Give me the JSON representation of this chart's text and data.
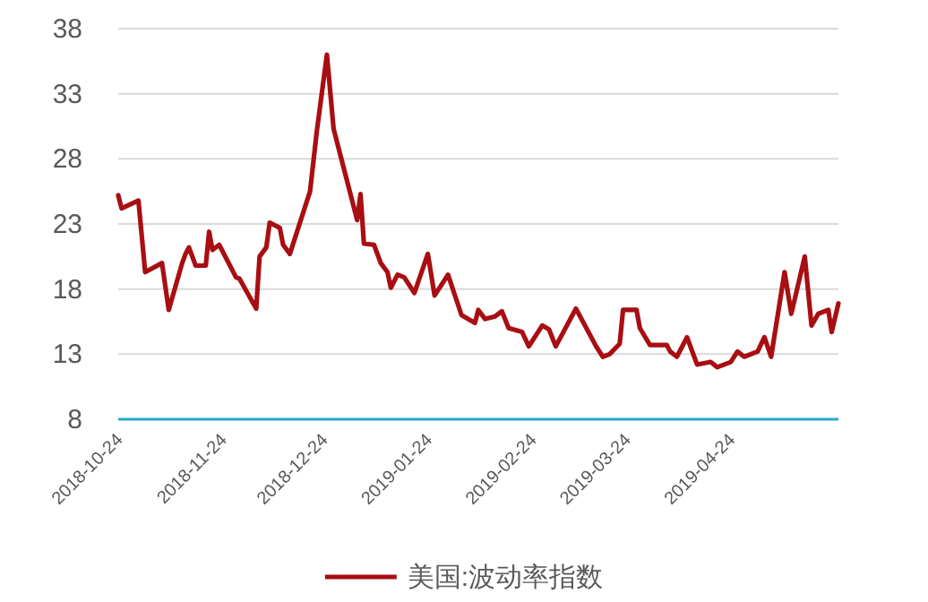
{
  "chart_data": {
    "type": "line",
    "xlim": [
      "2018-10-24",
      "2019-05-26"
    ],
    "xticks": [
      "2018-10-24",
      "2018-11-24",
      "2018-12-24",
      "2019-01-24",
      "2019-02-24",
      "2019-03-24",
      "2019-04-24"
    ],
    "ylim": [
      8,
      38
    ],
    "yticks": [
      8,
      13,
      18,
      23,
      28,
      33,
      38
    ],
    "grid": "y",
    "legend": "bottom",
    "marker": "none",
    "line_style": "solid",
    "x": [
      "2018-10-24",
      "2018-10-25",
      "2018-10-30",
      "2018-11-01",
      "2018-11-06",
      "2018-11-08",
      "2018-11-12",
      "2018-11-13",
      "2018-11-14",
      "2018-11-16",
      "2018-11-19",
      "2018-11-20",
      "2018-11-21",
      "2018-11-23",
      "2018-11-28",
      "2018-11-29",
      "2018-12-04",
      "2018-12-05",
      "2018-12-07",
      "2018-12-08",
      "2018-12-11",
      "2018-12-12",
      "2018-12-14",
      "2018-12-20",
      "2018-12-22",
      "2018-12-25",
      "2018-12-27",
      "2018-12-29",
      "2019-01-03",
      "2019-01-04",
      "2019-01-05",
      "2019-01-08",
      "2019-01-10",
      "2019-01-12",
      "2019-01-13",
      "2019-01-15",
      "2019-01-17",
      "2019-01-20",
      "2019-01-24",
      "2019-01-26",
      "2019-01-30",
      "2019-02-03",
      "2019-02-07",
      "2019-02-08",
      "2019-02-10",
      "2019-02-13",
      "2019-02-15",
      "2019-02-17",
      "2019-02-21",
      "2019-02-23",
      "2019-02-27",
      "2019-03-01",
      "2019-03-03",
      "2019-03-09",
      "2019-03-15",
      "2019-03-17",
      "2019-03-19",
      "2019-03-22",
      "2019-03-23",
      "2019-03-27",
      "2019-03-28",
      "2019-03-31",
      "2019-04-05",
      "2019-04-06",
      "2019-04-08",
      "2019-04-11",
      "2019-04-14",
      "2019-04-18",
      "2019-04-20",
      "2019-04-24",
      "2019-04-26",
      "2019-04-28",
      "2019-05-02",
      "2019-05-04",
      "2019-05-06",
      "2019-05-10",
      "2019-05-12",
      "2019-05-16",
      "2019-05-18",
      "2019-05-20",
      "2019-05-23",
      "2019-05-24",
      "2019-05-26"
    ],
    "series": [
      {
        "name": "美国:波动率指数",
        "color": "#a80e12",
        "values": [
          25.2,
          24.2,
          24.8,
          19.3,
          20.0,
          16.4,
          20.0,
          20.7,
          21.2,
          19.8,
          19.8,
          22.4,
          21.0,
          21.4,
          18.9,
          18.8,
          16.5,
          20.5,
          21.2,
          23.1,
          22.7,
          21.4,
          20.7,
          25.5,
          30.1,
          36.0,
          30.3,
          28.3,
          23.3,
          25.3,
          21.5,
          21.4,
          20.0,
          19.3,
          18.1,
          19.1,
          18.9,
          17.7,
          20.7,
          17.5,
          19.1,
          16.0,
          15.4,
          16.4,
          15.7,
          15.9,
          16.3,
          15.0,
          14.7,
          13.6,
          15.2,
          14.9,
          13.6,
          16.5,
          13.6,
          12.8,
          13.0,
          13.8,
          16.4,
          16.4,
          15.0,
          13.7,
          13.7,
          13.2,
          12.8,
          14.3,
          12.2,
          12.4,
          12.0,
          12.4,
          13.2,
          12.8,
          13.2,
          14.3,
          12.8,
          19.3,
          16.1,
          20.5,
          15.2,
          16.1,
          16.4,
          14.7,
          16.9
        ]
      }
    ]
  }
}
